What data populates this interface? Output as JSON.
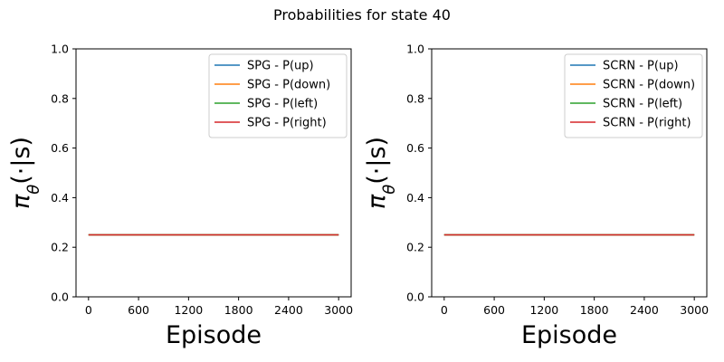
{
  "figure": {
    "title": "Probabilities for state 40"
  },
  "chart_data": [
    {
      "type": "line",
      "xlabel": "Episode",
      "ylabel": "π_θ(·|s)",
      "xlim": [
        -150,
        3150
      ],
      "ylim": [
        0,
        1
      ],
      "xticks": [
        0,
        600,
        1200,
        1800,
        2400,
        3000
      ],
      "yticks": [
        0.0,
        0.2,
        0.4,
        0.6,
        0.8,
        1.0
      ],
      "ytick_labels": [
        "0.0",
        "0.2",
        "0.4",
        "0.6",
        "0.8",
        "1.0"
      ],
      "grid": false,
      "legend_position": "top-right",
      "x": [
        0,
        3000
      ],
      "series": [
        {
          "name": "SPG - P(up)",
          "color": "#1f77b4",
          "values": [
            0.25,
            0.25
          ]
        },
        {
          "name": "SPG - P(down)",
          "color": "#ff7f0e",
          "values": [
            0.25,
            0.25
          ]
        },
        {
          "name": "SPG - P(left)",
          "color": "#2ca02c",
          "values": [
            0.25,
            0.25
          ]
        },
        {
          "name": "SPG - P(right)",
          "color": "#d62728",
          "values": [
            0.25,
            0.25
          ]
        }
      ]
    },
    {
      "type": "line",
      "xlabel": "Episode",
      "ylabel": "π_θ(·|s)",
      "xlim": [
        -150,
        3150
      ],
      "ylim": [
        0,
        1
      ],
      "xticks": [
        0,
        600,
        1200,
        1800,
        2400,
        3000
      ],
      "yticks": [
        0.0,
        0.2,
        0.4,
        0.6,
        0.8,
        1.0
      ],
      "ytick_labels": [
        "0.0",
        "0.2",
        "0.4",
        "0.6",
        "0.8",
        "1.0"
      ],
      "grid": false,
      "legend_position": "top-right",
      "x": [
        0,
        3000
      ],
      "series": [
        {
          "name": "SCRN - P(up)",
          "color": "#1f77b4",
          "values": [
            0.25,
            0.25
          ]
        },
        {
          "name": "SCRN - P(down)",
          "color": "#ff7f0e",
          "values": [
            0.25,
            0.25
          ]
        },
        {
          "name": "SCRN - P(left)",
          "color": "#2ca02c",
          "values": [
            0.25,
            0.25
          ]
        },
        {
          "name": "SCRN - P(right)",
          "color": "#d62728",
          "values": [
            0.25,
            0.25
          ]
        }
      ]
    }
  ]
}
